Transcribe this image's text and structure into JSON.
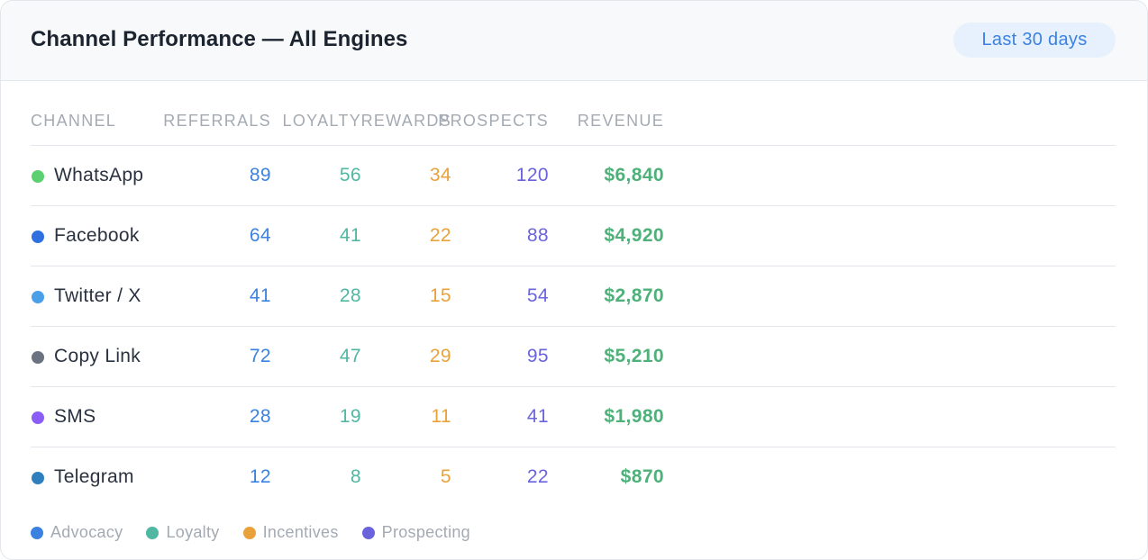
{
  "header": {
    "title": "Channel Performance — All Engines",
    "badge": "Last 30 days"
  },
  "table": {
    "columns": {
      "channel": "CHANNEL",
      "referrals": "REFERRALS",
      "loyalty": "LOYALTY",
      "rewards": "REWARDS",
      "prospects": "PROSPECTS",
      "revenue": "REVENUE"
    },
    "rows": [
      {
        "channel": "WhatsApp",
        "dot_color": "#5ccf6e",
        "referrals": "89",
        "loyalty": "56",
        "rewards": "34",
        "prospects": "120",
        "revenue": "$6,840"
      },
      {
        "channel": "Facebook",
        "dot_color": "#2f6fe0",
        "referrals": "64",
        "loyalty": "41",
        "rewards": "22",
        "prospects": "88",
        "revenue": "$4,920"
      },
      {
        "channel": "Twitter / X",
        "dot_color": "#4a9fe8",
        "referrals": "41",
        "loyalty": "28",
        "rewards": "15",
        "prospects": "54",
        "revenue": "$2,870"
      },
      {
        "channel": "Copy Link",
        "dot_color": "#6b7280",
        "referrals": "72",
        "loyalty": "47",
        "rewards": "29",
        "prospects": "95",
        "revenue": "$5,210"
      },
      {
        "channel": "SMS",
        "dot_color": "#8b5cf6",
        "referrals": "28",
        "loyalty": "19",
        "rewards": "11",
        "prospects": "41",
        "revenue": "$1,980"
      },
      {
        "channel": "Telegram",
        "dot_color": "#2f7fbf",
        "referrals": "12",
        "loyalty": "8",
        "rewards": "5",
        "prospects": "22",
        "revenue": "$870"
      }
    ]
  },
  "legend": [
    {
      "label": "Advocacy",
      "color": "#3b82e0"
    },
    {
      "label": "Loyalty",
      "color": "#4fb7a2"
    },
    {
      "label": "Incentives",
      "color": "#e9a23b"
    },
    {
      "label": "Prospecting",
      "color": "#6a63dc"
    }
  ]
}
